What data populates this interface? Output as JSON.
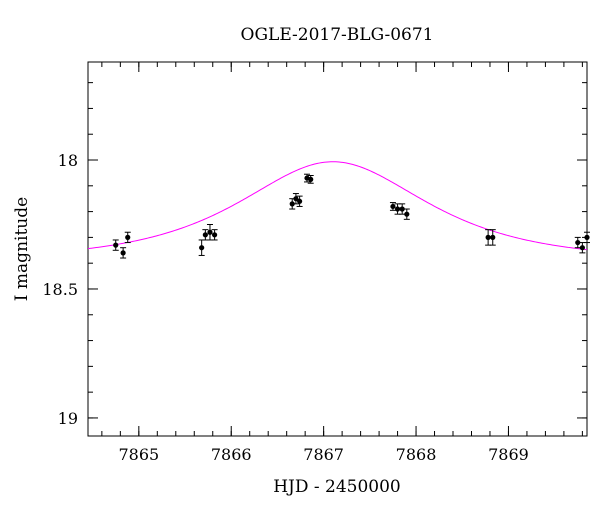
{
  "chart_data": {
    "type": "scatter",
    "title": "OGLE-2017-BLG-0671",
    "xlabel": "HJD - 2450000",
    "ylabel": "I magnitude",
    "xlim": [
      7864.45,
      7869.85
    ],
    "ylim": [
      19.07,
      17.62
    ],
    "y_inverted": true,
    "x_ticks": [
      7865,
      7866,
      7867,
      7868,
      7869
    ],
    "x_tick_labels": [
      "7865",
      "7866",
      "7867",
      "7868",
      "7869"
    ],
    "y_ticks": [
      18,
      18.5,
      19
    ],
    "y_tick_labels": [
      "18",
      "18.5",
      "19"
    ],
    "x_minor_step": 0.2,
    "y_minor_step": 0.1,
    "grid": false,
    "legend": "none",
    "series": [
      {
        "kind": "observations",
        "color": "#000000",
        "points": [
          {
            "x": 7864.75,
            "y": 18.33,
            "err": 0.02
          },
          {
            "x": 7864.83,
            "y": 18.36,
            "err": 0.02
          },
          {
            "x": 7864.88,
            "y": 18.3,
            "err": 0.02
          },
          {
            "x": 7865.68,
            "y": 18.34,
            "err": 0.03
          },
          {
            "x": 7865.72,
            "y": 18.29,
            "err": 0.02
          },
          {
            "x": 7865.77,
            "y": 18.28,
            "err": 0.03
          },
          {
            "x": 7865.82,
            "y": 18.29,
            "err": 0.02
          },
          {
            "x": 7866.66,
            "y": 18.17,
            "err": 0.02
          },
          {
            "x": 7866.7,
            "y": 18.15,
            "err": 0.02
          },
          {
            "x": 7866.74,
            "y": 18.16,
            "err": 0.02
          },
          {
            "x": 7866.82,
            "y": 18.07,
            "err": 0.015
          },
          {
            "x": 7866.86,
            "y": 18.075,
            "err": 0.015
          },
          {
            "x": 7867.75,
            "y": 18.18,
            "err": 0.015
          },
          {
            "x": 7867.8,
            "y": 18.19,
            "err": 0.02
          },
          {
            "x": 7867.85,
            "y": 18.19,
            "err": 0.02
          },
          {
            "x": 7867.9,
            "y": 18.21,
            "err": 0.02
          },
          {
            "x": 7868.78,
            "y": 18.3,
            "err": 0.03
          },
          {
            "x": 7868.83,
            "y": 18.3,
            "err": 0.03
          },
          {
            "x": 7869.75,
            "y": 18.32,
            "err": 0.02
          },
          {
            "x": 7869.8,
            "y": 18.34,
            "err": 0.02
          },
          {
            "x": 7869.85,
            "y": 18.3,
            "err": 0.02
          }
        ]
      },
      {
        "kind": "model",
        "color": "#ff00ff",
        "curve": {
          "t0": 7867.1,
          "tE": 1.3,
          "u0": 0.9,
          "baseline_mag": 18.39
        }
      }
    ]
  }
}
